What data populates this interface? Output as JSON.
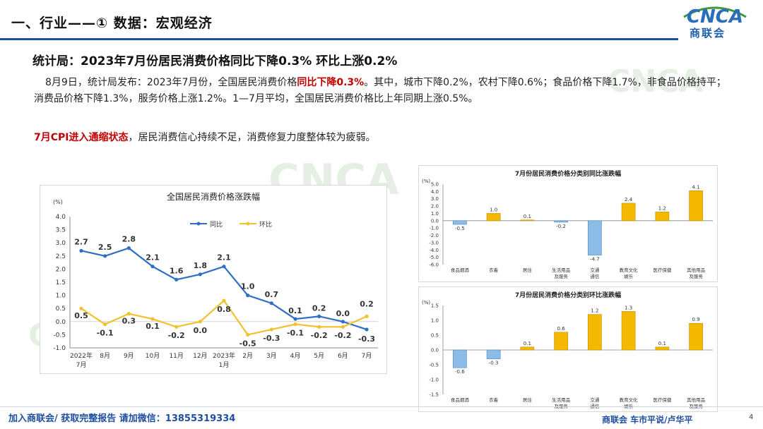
{
  "header": {
    "title": "一、行业——① 数据：宏观经济",
    "logo_text": "CNCA",
    "logo_sub": "商联会"
  },
  "headline": "统计局：2023年7月份居民消费价格同比下降0.3% 环比上涨0.2%",
  "paragraph": {
    "part1": "8月9日，统计局发布：2023年7月份，全国居民消费价格",
    "highlight": "同比下降0.3%",
    "part2": "。其中，城市下降0.2%，农村下降0.6%；食品价格下降1.7%，非食品价格持平；消费品价格下降1.3%，服务价格上涨1.2%。1—7月平均，全国居民消费价格比上年同期上涨0.5%。"
  },
  "paragraph2": {
    "highlight": "7月CPI进入通缩状态",
    "rest": "，居民消费信心持续不足，消费修复力度整体较为疲弱。"
  },
  "colors": {
    "accent_blue": "#1f4e9e",
    "highlight_red": "#c00000",
    "line_yoy": "#2e6fc3",
    "line_mom": "#f2c12e",
    "bar_pos": "#f5b800",
    "bar_neg": "#8dbbe8"
  },
  "chart_data": [
    {
      "type": "line",
      "title": "全国居民消费价格涨跌幅",
      "unit": "(%)",
      "categories": [
        [
          "2022年",
          "7月"
        ],
        [
          "8月"
        ],
        [
          "9月"
        ],
        [
          "10月"
        ],
        [
          "11月"
        ],
        [
          "12月"
        ],
        [
          "2023年",
          "1月"
        ],
        [
          "2月"
        ],
        [
          "3月"
        ],
        [
          "4月"
        ],
        [
          "5月"
        ],
        [
          "6月"
        ],
        [
          "7月"
        ]
      ],
      "series": [
        {
          "name": "同比",
          "values": [
            2.7,
            2.5,
            2.8,
            2.1,
            1.6,
            1.8,
            2.1,
            1.0,
            0.7,
            0.1,
            0.2,
            0.0,
            -0.3
          ]
        },
        {
          "name": "环比",
          "values": [
            0.5,
            -0.1,
            0.3,
            0.1,
            -0.2,
            0.0,
            0.8,
            -0.5,
            -0.3,
            -0.1,
            -0.2,
            -0.2,
            0.2
          ]
        }
      ],
      "ylim": [
        -1.0,
        4.0
      ],
      "yticks": [
        "4.0",
        "3.5",
        "3.0",
        "2.5",
        "2.0",
        "1.5",
        "1.0",
        "0.5",
        "0.0",
        "-0.5",
        "-1.0"
      ],
      "legend": "top-center"
    },
    {
      "type": "bar",
      "title": "7月份居民消费价格分类别同比涨跌幅",
      "unit": "(%)",
      "categories": [
        [
          "食品烟酒"
        ],
        [
          "衣着"
        ],
        [
          "居住"
        ],
        [
          "生活用品",
          "及服务"
        ],
        [
          "交通",
          "通信"
        ],
        [
          "教育文化",
          "娱乐"
        ],
        [
          "医疗保健"
        ],
        [
          "其他用品",
          "及服务"
        ]
      ],
      "values": [
        -0.5,
        1.0,
        0.1,
        -0.2,
        -4.7,
        2.4,
        1.2,
        4.1
      ],
      "labels": [
        "-0.5",
        "1.0",
        "0.1",
        "-0.2",
        "-4.7",
        "2.4",
        "1.2",
        "4.1"
      ],
      "ylim": [
        -6.0,
        5.0
      ],
      "yticks": [
        "5.0",
        "4.0",
        "3.0",
        "2.0",
        "1.0",
        "0.0",
        "-1.0",
        "-2.0",
        "-3.0",
        "-4.0",
        "-5.0",
        "-6.0"
      ]
    },
    {
      "type": "bar",
      "title": "7月份居民消费价格分类别环比涨跌幅",
      "unit": "(%)",
      "categories": [
        [
          "食品烟酒"
        ],
        [
          "衣着"
        ],
        [
          "居住"
        ],
        [
          "生活用品",
          "及服务"
        ],
        [
          "交通",
          "通信"
        ],
        [
          "教育文化",
          "娱乐"
        ],
        [
          "医疗保健"
        ],
        [
          "其他用品",
          "及服务"
        ]
      ],
      "values": [
        -0.6,
        -0.3,
        0.1,
        0.6,
        1.2,
        1.3,
        0.1,
        0.9
      ],
      "labels": [
        "-0.6",
        "-0.3",
        "0.1",
        "0.6",
        "1.2",
        "1.3",
        "0.1",
        "0.9"
      ],
      "ylim": [
        -1.5,
        1.5
      ],
      "yticks": [
        "1.5",
        "1.0",
        "0.5",
        "0.0",
        "-0.5",
        "-1.0",
        "-1.5"
      ]
    }
  ],
  "footer": {
    "left": "加入商联会/ 获取完整报告  请加微信：13855319334",
    "right": "商联会  车市平说/卢华平",
    "page": "4"
  }
}
